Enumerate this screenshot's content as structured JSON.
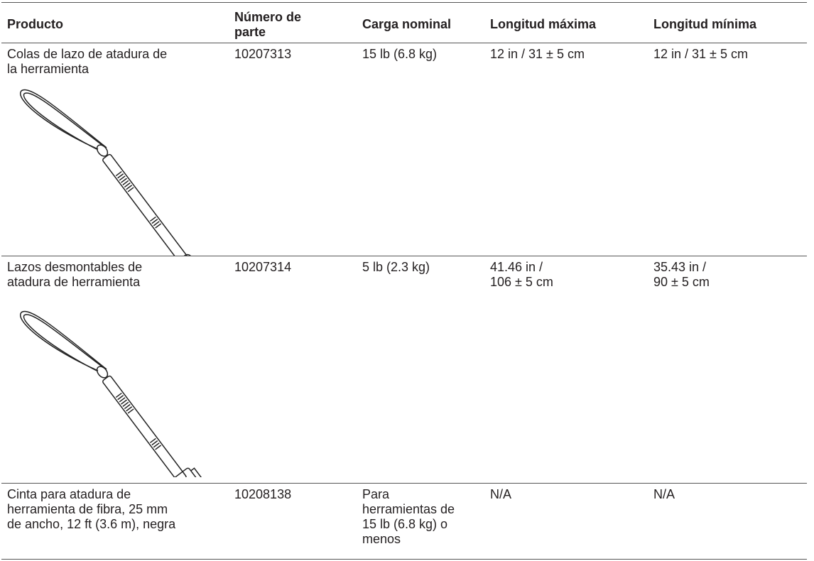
{
  "table": {
    "header": [
      "Producto",
      "Número de\nparte",
      "Carga nominal",
      "Longitud máxima",
      "Longitud mínima"
    ],
    "rows": [
      [
        "Colas de lazo de atadura de\nla herramienta",
        "10207313",
        "15 lb (6.8 kg)",
        "12 in / 31 ± 5 cm",
        "12 in / 31 ± 5 cm"
      ],
      [
        "Lazos desmontables de\natadura de herramienta",
        "10207314",
        "5 lb (2.3 kg)",
        "41.46 in /\n106 ± 5 cm",
        "35.43 in /\n90 ± 5 cm"
      ],
      [
        "Cinta para atadura de\nherramienta de fibra, 25 mm\nde ancho, 12 ft (3.6 m), negra",
        "10208138",
        "Para\nherramientas de\n15 lb (6.8 kg) o\nmenos",
        "N/A",
        "N/A"
      ]
    ]
  }
}
